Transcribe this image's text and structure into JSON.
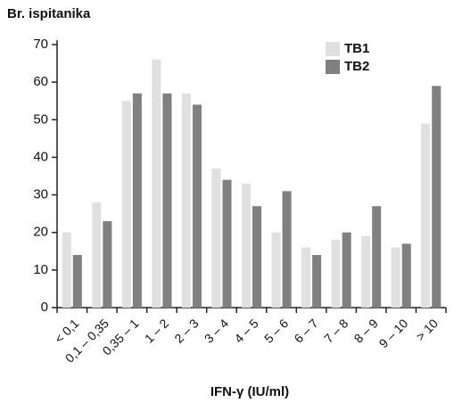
{
  "chart_data": {
    "type": "bar",
    "title": "Br. ispitanika",
    "x_label": "IFN-γ (IU/ml)",
    "categories": [
      "< 0,1",
      "0,1 – 0,35",
      "0,35 – 1",
      "1 – 2",
      "2 – 3",
      "3 – 4",
      "4 – 5",
      "5 – 6",
      "6 – 7",
      "7 – 8",
      "8 – 9",
      "9 – 10",
      "> 10"
    ],
    "series": [
      {
        "name": "TB1",
        "color": "#e0e0e0",
        "values": [
          20,
          28,
          55,
          66,
          57,
          37,
          33,
          20,
          16,
          18,
          19,
          16,
          49
        ]
      },
      {
        "name": "TB2",
        "color": "#808080",
        "values": [
          14,
          23,
          57,
          57,
          54,
          34,
          27,
          31,
          14,
          20,
          27,
          17,
          59
        ]
      }
    ],
    "ylim": [
      0,
      70
    ],
    "yticks": [
      0,
      10,
      20,
      30,
      40,
      50,
      60,
      70
    ],
    "grid": false,
    "legend": "top-right"
  }
}
